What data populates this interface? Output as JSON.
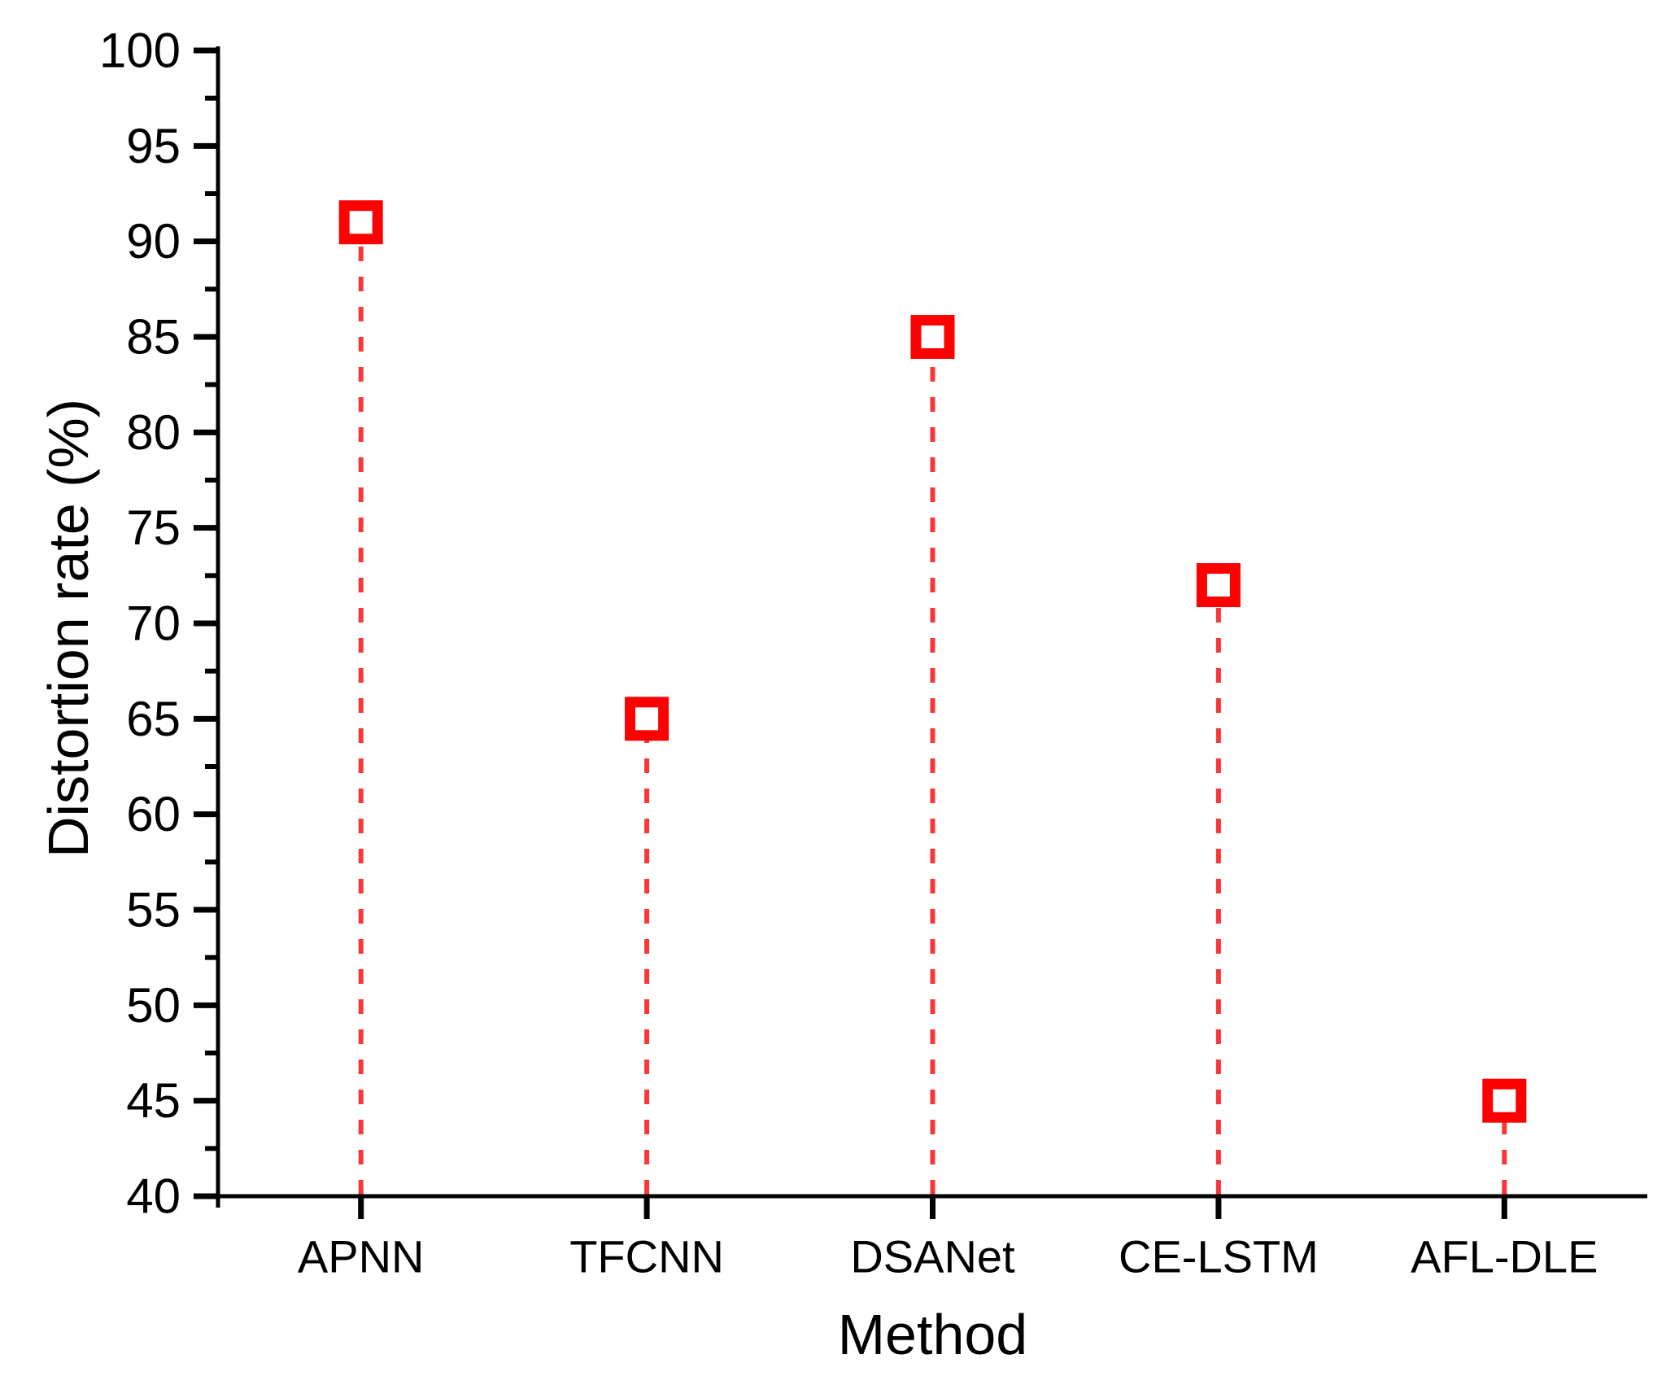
{
  "page": {
    "background": "#ffffff"
  },
  "chart_data": {
    "type": "scatter",
    "subtype": "stem-lollipop",
    "categories": [
      "APNN",
      "TFCNN",
      "DSANet",
      "CE-LSTM",
      "AFL-DLE"
    ],
    "values": [
      91,
      65,
      85,
      72,
      45
    ],
    "title": "",
    "xlabel": "Method",
    "ylabel": "Distortion rate (%)",
    "ylim": [
      40,
      100
    ],
    "yticks": [
      40,
      45,
      50,
      55,
      60,
      65,
      70,
      75,
      80,
      85,
      90,
      95,
      100
    ],
    "ytick_minor_step": 2.5,
    "grid": false,
    "legend": false,
    "marker": {
      "shape": "open-square",
      "color": "#ff0000",
      "size": 41,
      "stroke_width": 13
    },
    "stem": {
      "color": "#fa3737",
      "width": 6,
      "dash": [
        18,
        19
      ]
    },
    "axis_color": "#000000",
    "tick_label_color": "#000000"
  }
}
